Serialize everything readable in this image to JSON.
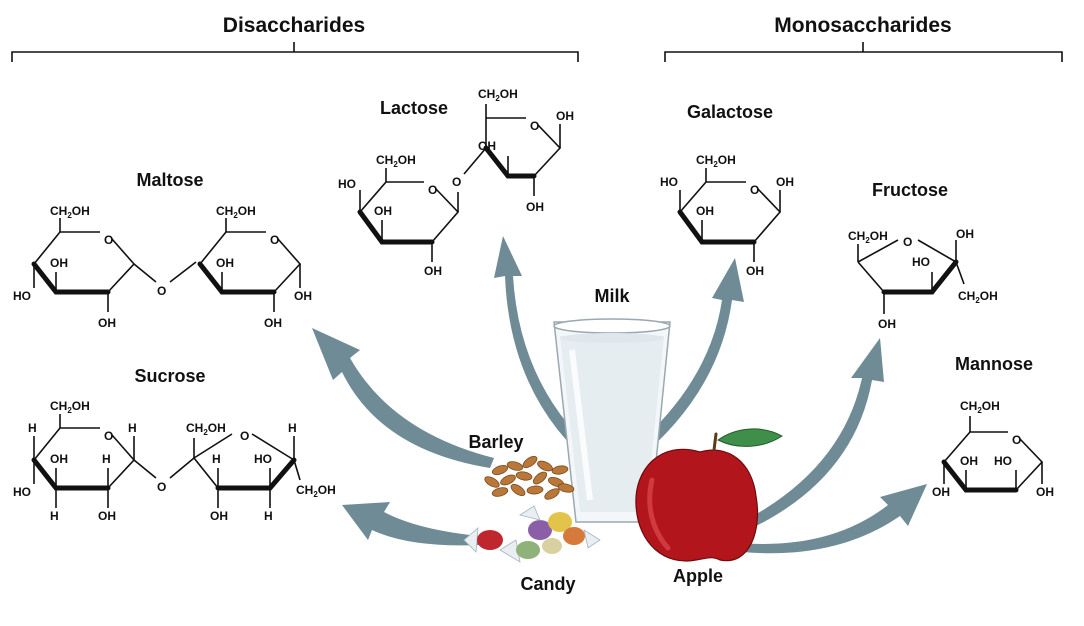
{
  "headers": {
    "disaccharides": "Disaccharides",
    "monosaccharides": "Monosaccharides"
  },
  "sugars": {
    "maltose": "Maltose",
    "sucrose": "Sucrose",
    "lactose": "Lactose",
    "galactose": "Galactose",
    "fructose": "Fructose",
    "mannose": "Mannose"
  },
  "foods": {
    "milk": "Milk",
    "barley": "Barley",
    "candy": "Candy",
    "apple": "Apple"
  },
  "atoms": {
    "ch2": "CH",
    "two": "2",
    "oh_tail": "OH",
    "oh": "OH",
    "ho": "HO",
    "o": "O",
    "h": "H"
  },
  "colors": {
    "arrow": "#6e8b96",
    "apple": "#b3151c",
    "leaf": "#3f8f4a",
    "milk": "#eef3f6",
    "barley": "#b9783a"
  }
}
